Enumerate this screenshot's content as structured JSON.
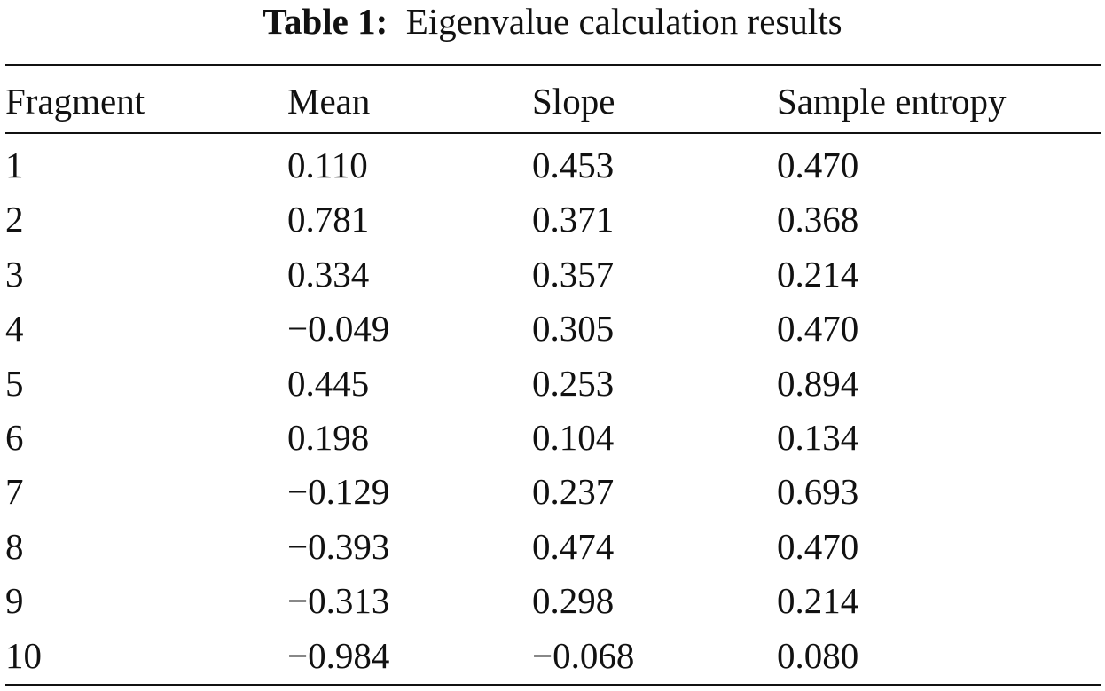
{
  "table": {
    "caption_label": "Table 1:",
    "caption_text": "Eigenvalue calculation results",
    "columns": [
      "Fragment",
      "Mean",
      "Slope",
      "Sample entropy"
    ],
    "rows": [
      [
        "1",
        "0.110",
        "0.453",
        "0.470"
      ],
      [
        "2",
        "0.781",
        "0.371",
        "0.368"
      ],
      [
        "3",
        "0.334",
        "0.357",
        "0.214"
      ],
      [
        "4",
        "−0.049",
        "0.305",
        "0.470"
      ],
      [
        "5",
        "0.445",
        "0.253",
        "0.894"
      ],
      [
        "6",
        "0.198",
        "0.104",
        "0.134"
      ],
      [
        "7",
        "−0.129",
        "0.237",
        "0.693"
      ],
      [
        "8",
        "−0.393",
        "0.474",
        "0.470"
      ],
      [
        "9",
        "−0.313",
        "0.298",
        "0.214"
      ],
      [
        "10",
        "−0.984",
        "−0.068",
        "0.080"
      ]
    ]
  }
}
